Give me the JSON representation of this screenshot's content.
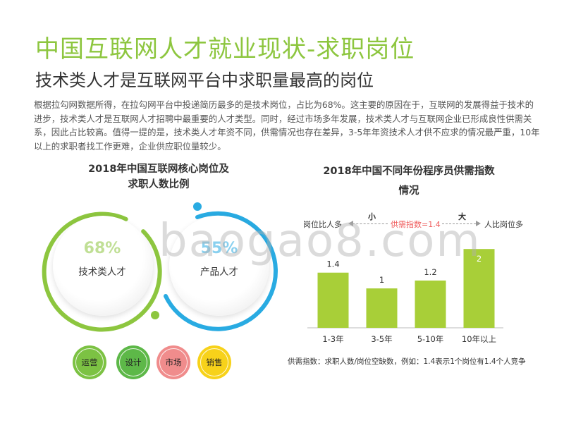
{
  "title": "中国互联网人才就业现状-求职岗位",
  "subtitle": "技术类人才是互联网平台中求职量最高的岗位",
  "body": "根据拉勾网数据所得，在拉勾网平台中投递简历最多的是技术岗位，占比为68%。这主要的原因在于，互联网的发展得益于技术的进步，技术类人才是互联网人才招聘中最重要的人才类型。同时，经过市场多年发展，技术类人才与互联网企业已形成良性供需关系，因此占比较高。值得一提的是，技术类人才年资不同，供需情况也存在差异，3-5年年资技术人才供不应求的情况最严重，10年以上的求职者找工作更难，企业供应职位量较少。",
  "left_chart": {
    "title_line1": "2018年中国互联网核心岗位及",
    "title_line2": "求职人数比例",
    "rings": [
      {
        "pct": "68%",
        "label": "技术类人才",
        "value": 68,
        "color": "#8dc63f"
      },
      {
        "pct": "55%",
        "label": "产品人才",
        "value": 55,
        "color": "#29abe2"
      }
    ],
    "small_circles": [
      {
        "label": "运营",
        "color": "#7cc243"
      },
      {
        "label": "设计",
        "color": "#5db848"
      },
      {
        "label": "市场",
        "color": "#f08c8c"
      },
      {
        "label": "销售",
        "color": "#f7d21a"
      }
    ]
  },
  "right_chart_header": {
    "title_line1": "2018年中国不同年份程序员供需指数",
    "title_line2": "情况",
    "left_axis": "岗位比人多",
    "right_axis": "人比岗位多",
    "small": "小",
    "large": "大",
    "center_label": "供需指数=1.4"
  },
  "chart_data": {
    "type": "bar",
    "title": "2018年中国不同年份程序员供需指数情况",
    "categories": [
      "1-3年",
      "3-5年",
      "5-10年",
      "10年以上"
    ],
    "values": [
      1.4,
      1,
      1.2,
      2
    ],
    "value_labels": [
      "1.4",
      "1",
      "1.2",
      "2"
    ],
    "ylim": [
      0,
      2.2
    ],
    "color": "#a8cf38"
  },
  "footnote": "供需指数：求职人数/岗位空缺数，例如：1.4表示1个岗位有1.4个人竞争",
  "watermark": "baogao8.com"
}
